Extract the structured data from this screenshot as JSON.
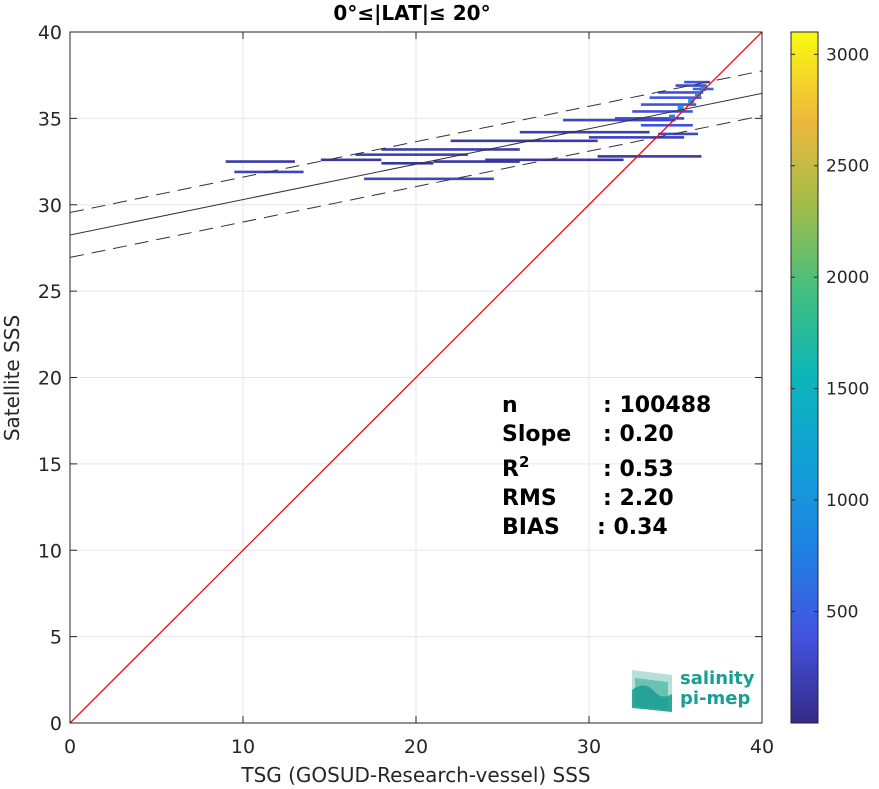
{
  "chart_data": {
    "type": "heatmap",
    "title": "0°≤|LAT|≤ 20°",
    "xlabel": "TSG (GOSUD-Research-vessel) SSS",
    "ylabel": "Satellite SSS",
    "xlim": [
      0,
      40
    ],
    "ylim": [
      0,
      40
    ],
    "x_ticks": [
      "0",
      "10",
      "20",
      "30",
      "40"
    ],
    "y_ticks": [
      "0",
      "5",
      "10",
      "15",
      "20",
      "25",
      "30",
      "35",
      "40"
    ],
    "grid": true,
    "colorbar": {
      "range": [
        0,
        3100
      ],
      "ticks": [
        "500",
        "1000",
        "1500",
        "2000",
        "2500",
        "3000"
      ],
      "colormap": "parula"
    },
    "one_to_one_line": {
      "color": "#ff0000",
      "x": [
        0,
        40
      ],
      "y": [
        0,
        40
      ]
    },
    "regression_line": {
      "x": [
        0,
        40
      ],
      "y": [
        28.25,
        36.45
      ]
    },
    "confidence_lines": [
      {
        "x": [
          0,
          40
        ],
        "y": [
          29.55,
          37.75
        ]
      },
      {
        "x": [
          0,
          40
        ],
        "y": [
          26.95,
          35.15
        ]
      }
    ],
    "density_segments": [
      {
        "x0": 9.0,
        "x1": 13.0,
        "y": 32.5,
        "count": 150
      },
      {
        "x0": 9.5,
        "x1": 13.5,
        "y": 31.9,
        "count": 250
      },
      {
        "x0": 14.5,
        "x1": 18.0,
        "y": 32.6,
        "count": 120
      },
      {
        "x0": 16.5,
        "x1": 23.0,
        "y": 32.9,
        "count": 220
      },
      {
        "x0": 18.0,
        "x1": 26.0,
        "y": 33.2,
        "count": 180
      },
      {
        "x0": 18.0,
        "x1": 21.0,
        "y": 32.4,
        "count": 100
      },
      {
        "x0": 21.0,
        "x1": 26.0,
        "y": 32.5,
        "count": 120
      },
      {
        "x0": 17.0,
        "x1": 24.5,
        "y": 31.5,
        "count": 260
      },
      {
        "x0": 22.0,
        "x1": 30.5,
        "y": 33.7,
        "count": 150
      },
      {
        "x0": 24.0,
        "x1": 32.0,
        "y": 32.6,
        "count": 110
      },
      {
        "x0": 26.0,
        "x1": 33.5,
        "y": 34.2,
        "count": 200
      },
      {
        "x0": 28.5,
        "x1": 35.0,
        "y": 34.9,
        "count": 260
      },
      {
        "x0": 30.0,
        "x1": 35.5,
        "y": 33.9,
        "count": 220
      },
      {
        "x0": 30.5,
        "x1": 36.5,
        "y": 32.8,
        "count": 150
      },
      {
        "x0": 31.5,
        "x1": 35.5,
        "y": 35.0,
        "count": 300
      },
      {
        "x0": 32.5,
        "x1": 36.0,
        "y": 35.4,
        "count": 350
      },
      {
        "x0": 33.0,
        "x1": 36.2,
        "y": 35.8,
        "count": 380
      },
      {
        "x0": 33.5,
        "x1": 36.5,
        "y": 36.2,
        "count": 420
      },
      {
        "x0": 34.0,
        "x1": 36.6,
        "y": 36.5,
        "count": 350
      },
      {
        "x0": 33.0,
        "x1": 36.0,
        "y": 34.6,
        "count": 380
      },
      {
        "x0": 35.0,
        "x1": 36.8,
        "y": 36.9,
        "count": 300
      },
      {
        "x0": 34.0,
        "x1": 36.3,
        "y": 34.1,
        "count": 280
      },
      {
        "x0": 35.5,
        "x1": 37.0,
        "y": 37.1,
        "count": 450
      },
      {
        "x0": 36.0,
        "x1": 37.2,
        "y": 36.7,
        "count": 600
      }
    ],
    "density_hotspots": [
      {
        "x": 35.3,
        "y": 35.6,
        "count": 1000
      },
      {
        "x": 35.9,
        "y": 36.0,
        "count": 1200
      },
      {
        "x": 36.3,
        "y": 36.4,
        "count": 950
      },
      {
        "x": 34.8,
        "y": 35.1,
        "count": 800
      },
      {
        "x": 36.6,
        "y": 36.7,
        "count": 900
      }
    ]
  },
  "stats": [
    {
      "label": "n",
      "value": ": 100488"
    },
    {
      "label": "Slope",
      "value": ": 0.20"
    },
    {
      "label": "R",
      "sup": "2",
      "value": ": 0.53"
    },
    {
      "label": "RMS",
      "value": ": 2.20"
    },
    {
      "label": "BIAS",
      "value": ": 0.34"
    }
  ],
  "logo": {
    "line1": "salinity",
    "line2": "pi-mep",
    "colors": [
      "#1a9e93",
      "#6ac2b3",
      "#b6e0d6"
    ]
  }
}
